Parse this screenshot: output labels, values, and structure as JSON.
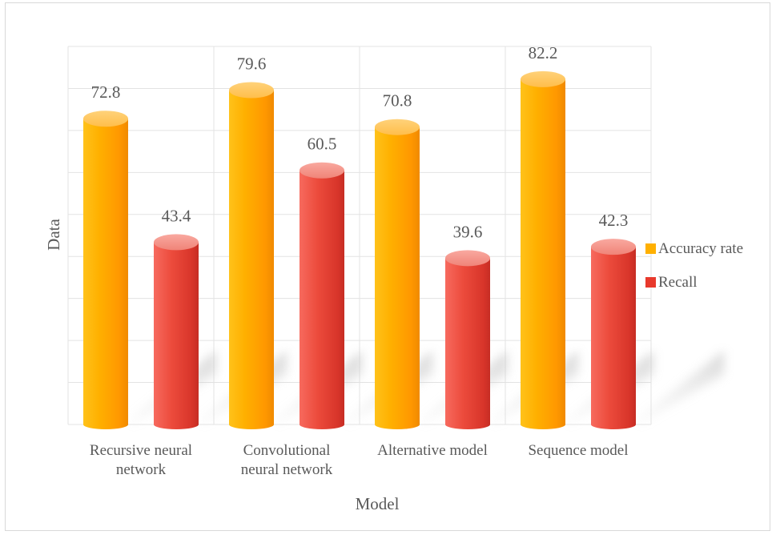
{
  "chart_data": {
    "type": "bar",
    "title": "",
    "xlabel": "Model",
    "ylabel": "Data",
    "categories": [
      [
        "Recursive neural",
        "network"
      ],
      [
        "Convolutional",
        "neural network"
      ],
      [
        "Alternative model"
      ],
      [
        "Sequence model"
      ]
    ],
    "series": [
      {
        "name": "Accuracy rate",
        "values": [
          72.8,
          79.6,
          70.8,
          82.2
        ],
        "color": "#ffa000"
      },
      {
        "name": "Recall",
        "values": [
          43.4,
          60.5,
          39.6,
          42.3
        ],
        "color": "#e8392c"
      }
    ],
    "ylim": [
      0,
      90
    ],
    "grid": true,
    "legend": "right",
    "bar_style": "3d-cylinder",
    "data_labels": true
  }
}
